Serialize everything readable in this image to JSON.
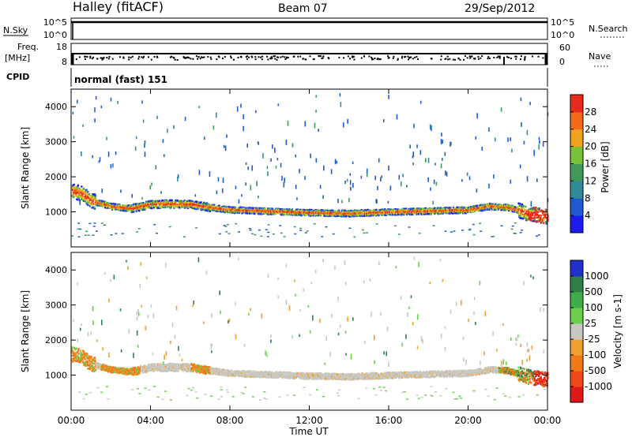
{
  "header": {
    "site": "Halley (fitACF)",
    "beam": "Beam 07",
    "date": "29/Sep/2012"
  },
  "top_panels": {
    "nsky": {
      "label": "N.Sky",
      "ticks": [
        "10^5",
        "10^0"
      ]
    },
    "nsearch": {
      "label": "N.Search",
      "ticks": [
        "10^5",
        "10^0"
      ]
    },
    "freq": {
      "label1": "Freq.",
      "label2": "[MHz]",
      "ticks": [
        "18",
        "8"
      ]
    },
    "nave": {
      "label": "Nave",
      "ticks": [
        "60",
        "0"
      ]
    },
    "cpid": {
      "label": "CPID",
      "value": "normal (fast) 151"
    }
  },
  "chart_data": [
    {
      "type": "heatmap",
      "panel": "power",
      "ylabel": "Slant Range [km]",
      "ylim": [
        0,
        4500
      ],
      "yticks": [
        "1000",
        "2000",
        "3000",
        "4000"
      ],
      "colorbar": {
        "title": "Power [dB]",
        "range": [
          0,
          32
        ],
        "ticks": [
          "4",
          "8",
          "12",
          "16",
          "20",
          "24",
          "28"
        ],
        "colors": [
          "#1c1cf0",
          "#1e5bd0",
          "#2f8a9a",
          "#3f9a5a",
          "#78c23a",
          "#c9d82a",
          "#f0a21f",
          "#f06a18",
          "#e82a1a"
        ]
      },
      "band_range_km": [
        [
          0,
          1620
        ],
        [
          0.5,
          1550
        ],
        [
          1,
          1340
        ],
        [
          2,
          1180
        ],
        [
          3,
          1120
        ],
        [
          4,
          1240
        ],
        [
          5,
          1250
        ],
        [
          6,
          1240
        ],
        [
          7,
          1150
        ],
        [
          8,
          1080
        ],
        [
          9,
          1060
        ],
        [
          10,
          1040
        ],
        [
          12,
          1000
        ],
        [
          14,
          980
        ],
        [
          16,
          1020
        ],
        [
          18,
          1050
        ],
        [
          20,
          1080
        ],
        [
          21,
          1180
        ],
        [
          22,
          1150
        ],
        [
          23,
          980
        ],
        [
          24,
          880
        ]
      ]
    },
    {
      "type": "heatmap",
      "panel": "velocity",
      "xlabel": "Time UT",
      "ylabel": "Slant Range [km]",
      "xticks": [
        "00:00",
        "04:00",
        "08:00",
        "12:00",
        "16:00",
        "20:00",
        "00:00"
      ],
      "ylim": [
        0,
        4500
      ],
      "yticks": [
        "1000",
        "2000",
        "3000",
        "4000"
      ],
      "colorbar": {
        "title": "Velocity [m s-1]",
        "ticks": [
          "1000",
          "500",
          "100",
          "25",
          "-25",
          "-100",
          "-500",
          "-1000"
        ],
        "colors": [
          "#2030c8",
          "#2f7e4a",
          "#3fae4a",
          "#6ad04a",
          "#c8c8c0",
          "#f0a030",
          "#f07a18",
          "#f04a18",
          "#e01818"
        ]
      }
    }
  ]
}
